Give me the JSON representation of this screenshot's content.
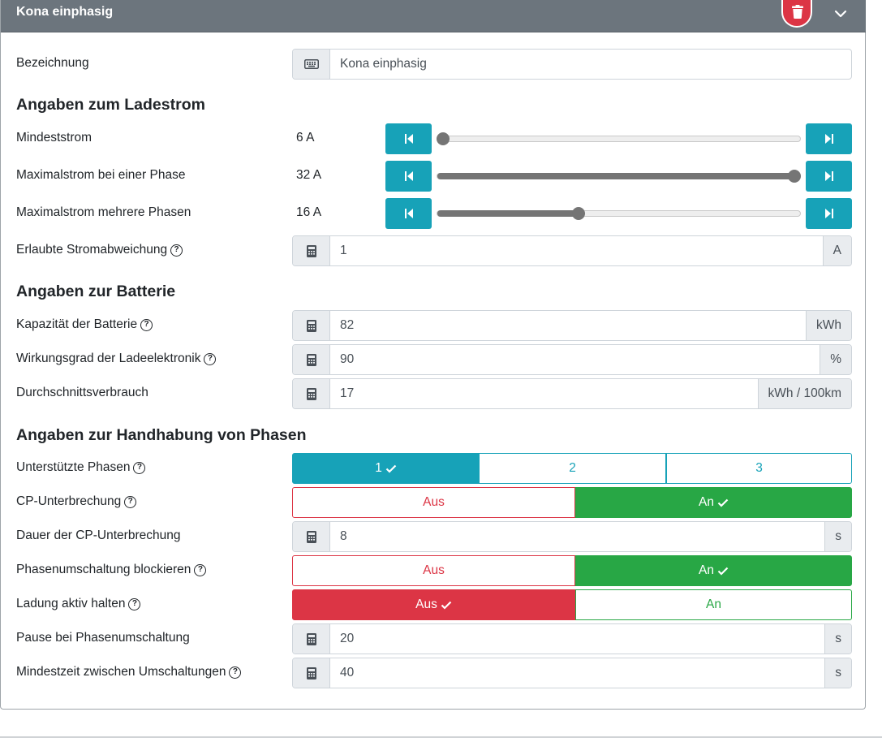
{
  "header": {
    "title": "Kona einphasig"
  },
  "colors": {
    "header_bg": "#6c757d",
    "info": "#17a2b8",
    "success": "#28a745",
    "danger": "#dc3545"
  },
  "icons": {
    "delete": "trash-icon",
    "collapse": "chevron-down-icon",
    "keyboard": "keyboard-icon",
    "calculator": "calculator-icon",
    "step_back": "step-backward-icon",
    "step_forward": "step-forward-icon",
    "help": "help-circle-icon",
    "check": "check-icon"
  },
  "bezeichnung": {
    "label": "Bezeichnung",
    "value": "Kona einphasig"
  },
  "ladestrom": {
    "heading": "Angaben zum Ladestrom",
    "mindeststrom": {
      "label": "Mindeststrom",
      "value": "6 A",
      "level": 0.0
    },
    "max_eine_phase": {
      "label": "Maximalstrom bei einer Phase",
      "value": "32 A",
      "level": 1.0
    },
    "max_mehrere_phasen": {
      "label": "Maximalstrom mehrere Phasen",
      "value": "16 A",
      "level": 0.385
    },
    "stromabweichung": {
      "label": "Erlaubte Stromabweichung",
      "value": "1",
      "unit": "A"
    }
  },
  "batterie": {
    "heading": "Angaben zur Batterie",
    "kapazitaet": {
      "label": "Kapazität der Batterie",
      "value": "82",
      "unit": "kWh"
    },
    "wirkungsgrad": {
      "label": "Wirkungsgrad der Ladeelektronik",
      "value": "90",
      "unit": "%"
    },
    "verbrauch": {
      "label": "Durchschnittsverbrauch",
      "value": "17",
      "unit": "kWh / 100km"
    }
  },
  "phasen": {
    "heading": "Angaben zur Handhabung von Phasen",
    "unterstuetzte": {
      "label": "Unterstützte Phasen",
      "options": [
        "1",
        "2",
        "3"
      ],
      "selected": "1"
    },
    "cp_unterbrechung": {
      "label": "CP-Unterbrechung",
      "off_label": "Aus",
      "on_label": "An",
      "state": "An"
    },
    "cp_dauer": {
      "label": "Dauer der CP-Unterbrechung",
      "value": "8",
      "unit": "s"
    },
    "umschaltung_blockieren": {
      "label": "Phasenumschaltung blockieren",
      "off_label": "Aus",
      "on_label": "An",
      "state": "An"
    },
    "ladung_aktiv": {
      "label": "Ladung aktiv halten",
      "off_label": "Aus",
      "on_label": "An",
      "state": "Aus"
    },
    "pause": {
      "label": "Pause bei Phasenumschaltung",
      "value": "20",
      "unit": "s"
    },
    "mindestzeit": {
      "label": "Mindestzeit zwischen Umschaltungen",
      "value": "40",
      "unit": "s"
    }
  }
}
